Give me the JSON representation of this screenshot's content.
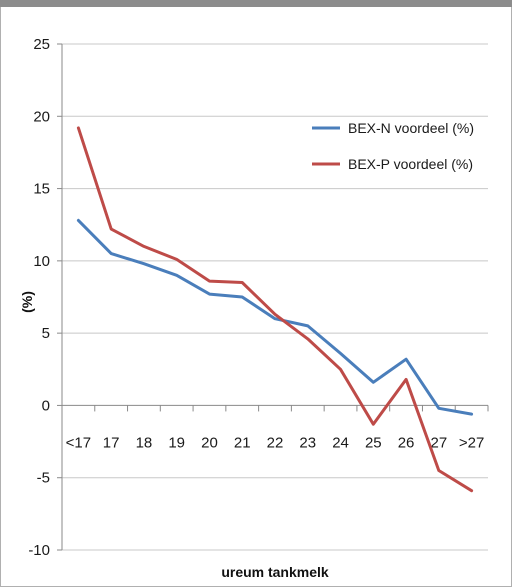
{
  "chart_data": {
    "type": "line",
    "title": "",
    "xlabel": "ureum tankmelk",
    "ylabel": "(%)",
    "categories": [
      "<17",
      "17",
      "18",
      "19",
      "20",
      "21",
      "22",
      "23",
      "24",
      "25",
      "26",
      "27",
      ">27"
    ],
    "ylim": [
      -10,
      25
    ],
    "yticks": [
      -10,
      -5,
      0,
      5,
      10,
      15,
      20,
      25
    ],
    "grid": "horizontal",
    "legend_position": "top-right",
    "series": [
      {
        "name": "BEX-N voordeel (%)",
        "color": "#4a7ebb",
        "values": [
          12.8,
          10.5,
          9.8,
          9.0,
          7.7,
          7.5,
          6.0,
          5.5,
          3.6,
          1.6,
          3.2,
          -0.2,
          -0.6
        ]
      },
      {
        "name": "BEX-P voordeel (%)",
        "color": "#be4b48",
        "values": [
          19.2,
          12.2,
          11.0,
          10.1,
          8.6,
          8.5,
          6.3,
          4.6,
          2.5,
          -1.3,
          1.8,
          -4.5,
          -5.9
        ]
      }
    ]
  }
}
